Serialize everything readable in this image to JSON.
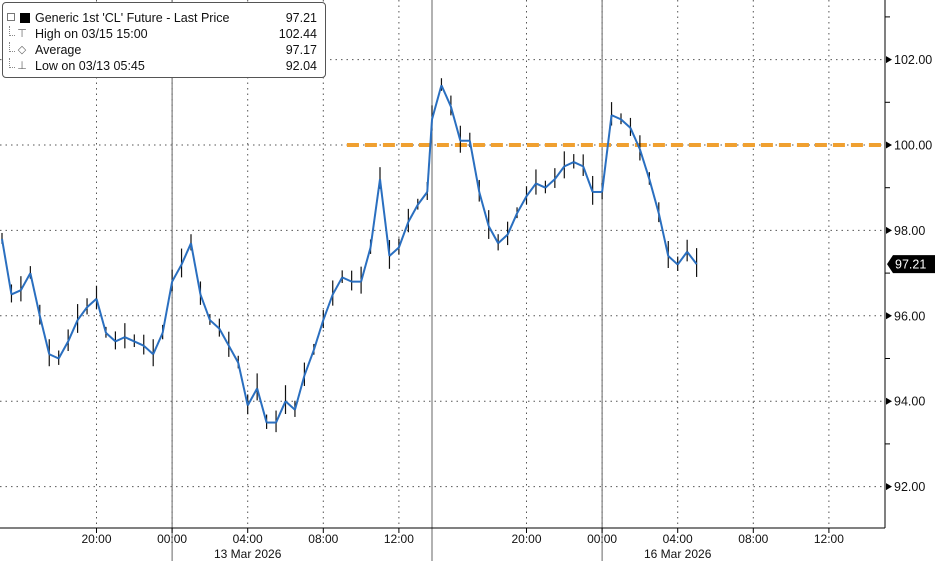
{
  "chart_data": {
    "type": "line",
    "title": "",
    "xlabel": "",
    "ylabel": "",
    "ylim": [
      91,
      103.5
    ],
    "y_ticks": [
      "92.00",
      "94.00",
      "96.00",
      "98.00",
      "100.00",
      "102.00"
    ],
    "grid": true,
    "legend_position": "top-left",
    "series_color": "#2a6fc0",
    "candle_color": "#111111",
    "x_ticks": [
      {
        "t": "03/12 20:00",
        "label": "20:00"
      },
      {
        "t": "03/13 00:00",
        "label": "00:00"
      },
      {
        "t": "03/13 04:00",
        "label": "04:00"
      },
      {
        "t": "03/13 08:00",
        "label": "08:00"
      },
      {
        "t": "03/13 12:00",
        "label": "12:00"
      },
      {
        "t": "03/15 20:00",
        "label": "20:00"
      },
      {
        "t": "03/16 00:00",
        "label": "00:00"
      },
      {
        "t": "03/16 04:00",
        "label": "04:00"
      },
      {
        "t": "03/16 08:00",
        "label": "08:00"
      },
      {
        "t": "03/16 12:00",
        "label": "12:00"
      }
    ],
    "date_labels": [
      {
        "t": "03/13 04:00",
        "label": "13 Mar 2026"
      },
      {
        "t": "03/16 04:00",
        "label": "16 Mar 2026"
      }
    ],
    "legend": {
      "series": {
        "label": "Generic 1st 'CL' Future - Last Price",
        "value": "97.21"
      },
      "high": {
        "label": "High on 03/15 15:00",
        "value": "102.44"
      },
      "average": {
        "label": "Average",
        "value": "97.17"
      },
      "low": {
        "label": "Low on 03/13 05:45",
        "value": "92.04"
      }
    },
    "last_price_label": "97.21",
    "reference_line": {
      "value": 100,
      "color": "#f0a030",
      "from": "03/13 09:15"
    },
    "series": [
      {
        "name": "Generic 1st 'CL' Future - Last Price",
        "points": [
          {
            "t": "03/12 15:00",
            "v": 97.8
          },
          {
            "t": "03/12 15:30",
            "v": 96.5
          },
          {
            "t": "03/12 16:00",
            "v": 96.6
          },
          {
            "t": "03/12 16:30",
            "v": 97.0
          },
          {
            "t": "03/12 17:00",
            "v": 96.0
          },
          {
            "t": "03/12 17:30",
            "v": 95.1
          },
          {
            "t": "03/12 18:00",
            "v": 95.0
          },
          {
            "t": "03/12 18:30",
            "v": 95.4
          },
          {
            "t": "03/12 19:00",
            "v": 95.9
          },
          {
            "t": "03/12 19:30",
            "v": 96.2
          },
          {
            "t": "03/12 20:00",
            "v": 96.4
          },
          {
            "t": "03/12 20:30",
            "v": 95.6
          },
          {
            "t": "03/12 21:00",
            "v": 95.4
          },
          {
            "t": "03/12 21:30",
            "v": 95.5
          },
          {
            "t": "03/12 22:00",
            "v": 95.4
          },
          {
            "t": "03/12 22:30",
            "v": 95.3
          },
          {
            "t": "03/12 23:00",
            "v": 95.1
          },
          {
            "t": "03/12 23:30",
            "v": 95.6
          },
          {
            "t": "03/13 00:00",
            "v": 96.8
          },
          {
            "t": "03/13 00:30",
            "v": 97.2
          },
          {
            "t": "03/13 01:00",
            "v": 97.7
          },
          {
            "t": "03/13 01:30",
            "v": 96.5
          },
          {
            "t": "03/13 02:00",
            "v": 95.9
          },
          {
            "t": "03/13 02:30",
            "v": 95.7
          },
          {
            "t": "03/13 03:00",
            "v": 95.3
          },
          {
            "t": "03/13 03:30",
            "v": 94.9
          },
          {
            "t": "03/13 04:00",
            "v": 93.9
          },
          {
            "t": "03/13 04:30",
            "v": 94.3
          },
          {
            "t": "03/13 05:00",
            "v": 93.5
          },
          {
            "t": "03/13 05:30",
            "v": 93.5
          },
          {
            "t": "03/13 06:00",
            "v": 94.0
          },
          {
            "t": "03/13 06:30",
            "v": 93.8
          },
          {
            "t": "03/13 07:00",
            "v": 94.6
          },
          {
            "t": "03/13 07:30",
            "v": 95.2
          },
          {
            "t": "03/13 08:00",
            "v": 95.9
          },
          {
            "t": "03/13 08:30",
            "v": 96.5
          },
          {
            "t": "03/13 09:00",
            "v": 96.9
          },
          {
            "t": "03/13 09:30",
            "v": 96.8
          },
          {
            "t": "03/13 10:00",
            "v": 96.8
          },
          {
            "t": "03/13 10:30",
            "v": 97.6
          },
          {
            "t": "03/13 11:00",
            "v": 99.2
          },
          {
            "t": "03/13 11:30",
            "v": 97.4
          },
          {
            "t": "03/13 12:00",
            "v": 97.6
          },
          {
            "t": "03/13 12:30",
            "v": 98.2
          },
          {
            "t": "03/13 13:00",
            "v": 98.6
          },
          {
            "t": "03/13 13:30",
            "v": 98.9
          },
          {
            "t": "03/15 15:00",
            "v": 100.6
          },
          {
            "t": "03/15 15:30",
            "v": 101.4
          },
          {
            "t": "03/15 16:00",
            "v": 100.9
          },
          {
            "t": "03/15 16:30",
            "v": 100.1
          },
          {
            "t": "03/15 17:00",
            "v": 100.1
          },
          {
            "t": "03/15 17:30",
            "v": 98.9
          },
          {
            "t": "03/15 18:00",
            "v": 98.1
          },
          {
            "t": "03/15 18:30",
            "v": 97.7
          },
          {
            "t": "03/15 19:00",
            "v": 97.9
          },
          {
            "t": "03/15 19:30",
            "v": 98.4
          },
          {
            "t": "03/15 20:00",
            "v": 98.8
          },
          {
            "t": "03/15 20:30",
            "v": 99.1
          },
          {
            "t": "03/15 21:00",
            "v": 99.0
          },
          {
            "t": "03/15 21:30",
            "v": 99.2
          },
          {
            "t": "03/15 22:00",
            "v": 99.5
          },
          {
            "t": "03/15 22:30",
            "v": 99.6
          },
          {
            "t": "03/15 23:00",
            "v": 99.5
          },
          {
            "t": "03/15 23:30",
            "v": 98.9
          },
          {
            "t": "03/16 00:00",
            "v": 98.9
          },
          {
            "t": "03/16 00:30",
            "v": 100.7
          },
          {
            "t": "03/16 01:00",
            "v": 100.6
          },
          {
            "t": "03/16 01:30",
            "v": 100.4
          },
          {
            "t": "03/16 02:00",
            "v": 99.9
          },
          {
            "t": "03/16 02:30",
            "v": 99.2
          },
          {
            "t": "03/16 03:00",
            "v": 98.4
          },
          {
            "t": "03/16 03:30",
            "v": 97.4
          },
          {
            "t": "03/16 04:00",
            "v": 97.2
          },
          {
            "t": "03/16 04:30",
            "v": 97.5
          },
          {
            "t": "03/16 05:00",
            "v": 97.21
          }
        ]
      }
    ]
  }
}
